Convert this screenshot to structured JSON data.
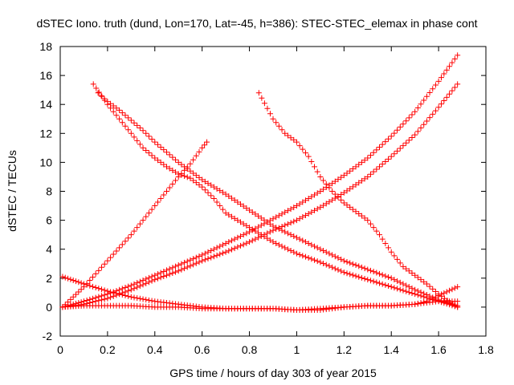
{
  "chart_data": {
    "type": "scatter",
    "title": "dSTEC Iono. truth (dund, Lon=170, Lat=-45, h=386): STEC-STEC_elemax in phase cont",
    "xlabel": "GPS time / hours of day 303 of year 2015",
    "ylabel": "dSTEC  / TECUs",
    "xlim": [
      0,
      1.8
    ],
    "ylim": [
      -2,
      18
    ],
    "xticks": [
      "0",
      "0.2",
      "0.4",
      "0.6",
      "0.8",
      "1",
      "1.2",
      "1.4",
      "1.6",
      "1.8"
    ],
    "yticks": [
      "-2",
      "0",
      "2",
      "4",
      "6",
      "8",
      "10",
      "12",
      "14",
      "16",
      "18"
    ],
    "grid": false,
    "legend": "none",
    "marker": "+",
    "color": "#ff0000",
    "series": [
      {
        "x": [
          0.01,
          0.1,
          0.2,
          0.3,
          0.4,
          0.5,
          0.55,
          0.6,
          0.62
        ],
        "y": [
          0.0,
          1.4,
          3.2,
          5.0,
          7.0,
          9.0,
          9.9,
          11.0,
          11.4
        ]
      },
      {
        "x": [
          0.14,
          0.2,
          0.25,
          0.3,
          0.35,
          0.4,
          0.45,
          0.5,
          0.55,
          0.6,
          0.65,
          0.7,
          0.8,
          0.9,
          1.0,
          1.1,
          1.2,
          1.3,
          1.4,
          1.5,
          1.6,
          1.68
        ],
        "y": [
          15.4,
          14.0,
          13.0,
          12.0,
          11.0,
          10.3,
          9.7,
          9.2,
          8.9,
          8.3,
          7.5,
          6.5,
          5.5,
          4.5,
          3.7,
          3.1,
          2.4,
          1.9,
          1.4,
          0.9,
          0.4,
          0.0
        ]
      },
      {
        "x": [
          0.16,
          0.2,
          0.25,
          0.3,
          0.35,
          0.4,
          0.5,
          0.6,
          0.7,
          0.8,
          0.9,
          1.0,
          1.1,
          1.2,
          1.3,
          1.4,
          1.5,
          1.6,
          1.68
        ],
        "y": [
          14.8,
          14.2,
          13.6,
          12.9,
          12.2,
          11.4,
          10.0,
          8.8,
          7.8,
          6.7,
          5.6,
          4.8,
          4.0,
          3.2,
          2.6,
          2.0,
          1.2,
          0.5,
          0.1
        ]
      },
      {
        "x": [
          0.84,
          0.9,
          0.95,
          1.0,
          1.05,
          1.1,
          1.15,
          1.2,
          1.25,
          1.3,
          1.35,
          1.4,
          1.45,
          1.5,
          1.55,
          1.6,
          1.65,
          1.68
        ],
        "y": [
          14.8,
          13.0,
          12.0,
          11.4,
          10.4,
          9.0,
          8.0,
          7.2,
          6.6,
          6.0,
          5.0,
          3.8,
          2.8,
          2.2,
          1.6,
          0.9,
          0.3,
          0.0
        ]
      },
      {
        "x": [
          0.01,
          0.1,
          0.2,
          0.3,
          0.4,
          0.5,
          0.6,
          0.7,
          0.8,
          0.9,
          1.0,
          1.1,
          1.2,
          1.3,
          1.4,
          1.5,
          1.6,
          1.68
        ],
        "y": [
          0.0,
          0.2,
          0.6,
          1.2,
          1.9,
          2.5,
          3.2,
          3.8,
          4.5,
          5.3,
          6.0,
          6.9,
          7.9,
          9.0,
          10.4,
          11.9,
          13.8,
          15.4
        ]
      },
      {
        "x": [
          0.01,
          0.1,
          0.2,
          0.3,
          0.4,
          0.5,
          0.6,
          0.7,
          0.8,
          0.9,
          1.0,
          1.1,
          1.2,
          1.3,
          1.4,
          1.5,
          1.6,
          1.68
        ],
        "y": [
          0.0,
          0.4,
          0.9,
          1.5,
          2.2,
          2.9,
          3.6,
          4.4,
          5.2,
          6.1,
          7.0,
          8.0,
          9.1,
          10.3,
          11.8,
          13.5,
          15.6,
          17.4
        ]
      },
      {
        "x": [
          0.01,
          0.1,
          0.2,
          0.3,
          0.4,
          0.5,
          0.6,
          0.7,
          0.8,
          0.9,
          1.0,
          1.1,
          1.2,
          1.3,
          1.4,
          1.5,
          1.6,
          1.68
        ],
        "y": [
          2.1,
          1.6,
          1.1,
          0.7,
          0.4,
          0.2,
          0.0,
          -0.1,
          -0.1,
          -0.1,
          -0.2,
          -0.2,
          0.0,
          0.1,
          0.1,
          0.2,
          0.4,
          0.4
        ]
      },
      {
        "x": [
          0.01,
          0.1,
          0.2,
          0.3,
          0.4,
          0.5,
          0.6,
          0.7,
          0.8,
          0.9,
          1.0,
          1.1,
          1.2,
          1.3,
          1.4,
          1.5,
          1.55,
          1.6,
          1.68
        ],
        "y": [
          0.0,
          0.1,
          0.1,
          0.1,
          0.0,
          0.0,
          -0.1,
          -0.1,
          -0.1,
          -0.1,
          -0.2,
          -0.1,
          0.0,
          0.1,
          0.1,
          0.2,
          0.4,
          0.8,
          1.4
        ]
      }
    ]
  }
}
